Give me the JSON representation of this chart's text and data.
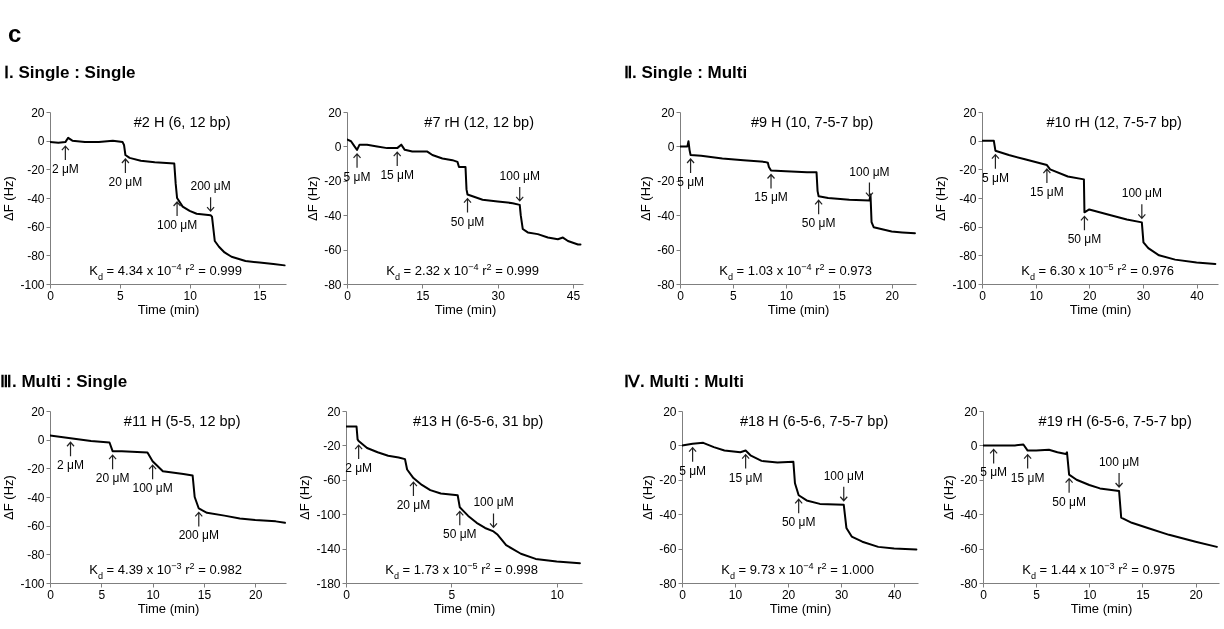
{
  "chart_data": [
    {
      "type": "line",
      "title": "#2  H (6, 12 bp)",
      "subtitle": "Ⅰ. Single : Single",
      "xlabel": "Time  (min)",
      "ylabel": "ΔF (Hz)",
      "xlim": [
        0,
        16.9
      ],
      "xticks": [
        0,
        5,
        10,
        15
      ],
      "ylim": [
        -100,
        20
      ],
      "yticks": [
        -100,
        -80,
        -60,
        -40,
        -20,
        0,
        20
      ],
      "series": [
        {
          "color": "#000000",
          "x": [
            0,
            0.6,
            1.1,
            1.3,
            1.6,
            2.5,
            3.5,
            4.5,
            5.2,
            5.3,
            5.4,
            5.7,
            6.5,
            7.5,
            8.9,
            9.0,
            9.1,
            9.5,
            10,
            10.5,
            11.5,
            11.6,
            11.8,
            12.1,
            12.5,
            13,
            14,
            15,
            16,
            16.8
          ],
          "values": [
            -1,
            -1.5,
            -1,
            2,
            0,
            -1,
            -1,
            0,
            -1,
            -3,
            -10,
            -12,
            -14,
            -15,
            -16,
            -30,
            -40,
            -46,
            -49,
            -51,
            -52,
            -53,
            -70,
            -74,
            -78,
            -81,
            -84,
            -85,
            -86,
            -87
          ]
        }
      ],
      "annotations": [
        "c",
        {
          "text": "2 μM",
          "x": 1.1,
          "y": -1
        },
        {
          "text": "20 μM",
          "x": 5.4,
          "y": -10
        },
        {
          "text": "100 μM",
          "x": 9.1,
          "y": -40
        },
        {
          "text": "200 μM",
          "x": 11.5,
          "y": -52
        },
        "K$_{d}$ = 4.34 x 10$^{−4}$   r$^{2}$ = 0.999"
      ]
    },
    {
      "type": "line",
      "title": "#7  rH (12, 12 bp)",
      "xlabel": "Time  (min)",
      "ylabel": "ΔF (Hz)",
      "xlim": [
        0,
        47
      ],
      "xticks": [
        0,
        15,
        30,
        45
      ],
      "ylim": [
        -80,
        20
      ],
      "yticks": [
        -80,
        -60,
        -40,
        -20,
        0,
        20
      ],
      "series": [
        {
          "color": "#000000",
          "x": [
            0,
            0.8,
            1.5,
            2,
            2.5,
            4,
            6,
            8,
            10,
            10.8,
            11.5,
            13,
            16,
            17,
            19,
            21,
            22,
            22.3,
            23.6,
            23.8,
            24,
            25,
            27,
            30,
            33,
            34.4,
            34.6,
            35,
            36,
            38,
            40,
            42,
            43,
            44,
            45,
            46,
            46.5
          ],
          "values": [
            4,
            3,
            0,
            -2,
            1,
            1,
            0,
            -1,
            -1,
            1,
            -2,
            -3,
            -3,
            -5,
            -7,
            -8,
            -9,
            -12,
            -12,
            -25,
            -28,
            -29,
            -31,
            -32,
            -33,
            -34,
            -40,
            -48,
            -50,
            -51,
            -53,
            -54,
            -53,
            -55,
            -56,
            -57,
            -57
          ]
        }
      ],
      "annotations": [
        {
          "text": "5 μM",
          "x": 2,
          "y": -2
        },
        {
          "text": "15 μM",
          "x": 10,
          "y": -1
        },
        {
          "text": "50 μM",
          "x": 24,
          "y": -28
        },
        {
          "text": "100 μM",
          "x": 34.4,
          "y": -34
        },
        "K$_{d}$ = 2.32 x 10$^{−4}$   r$^{2}$ = 0.999"
      ]
    },
    {
      "type": "line",
      "title": "#9  H (10, 7-5-7 bp)",
      "subtitle": "Ⅱ. Single : Multi",
      "xlabel": "Time  (min)",
      "ylabel": "ΔF (Hz)",
      "xlim": [
        0,
        22.3
      ],
      "xticks": [
        0,
        5,
        10,
        15,
        20
      ],
      "ylim": [
        -80,
        20
      ],
      "yticks": [
        -80,
        -60,
        -40,
        -20,
        0,
        20
      ],
      "series": [
        {
          "color": "#000000",
          "x": [
            0,
            0.7,
            0.8,
            0.9,
            1.0,
            2,
            4,
            6,
            8,
            8.3,
            8.4,
            8.6,
            10,
            12,
            12.9,
            13.0,
            13.1,
            14,
            16,
            17.9,
            18.0,
            18.1,
            18.3,
            19,
            20,
            21,
            22.2
          ],
          "values": [
            0,
            0,
            3,
            -2,
            -5,
            -5.5,
            -7,
            -8,
            -9,
            -9.5,
            -12,
            -14,
            -14.5,
            -15,
            -15,
            -26,
            -29,
            -30,
            -31,
            -31.5,
            -28,
            -44,
            -47,
            -48,
            -49.5,
            -50,
            -50.5
          ]
        }
      ],
      "annotations": [
        {
          "text": "5 μM",
          "x": 1.0,
          "y": -5
        },
        {
          "text": "15 μM",
          "x": 8.6,
          "y": -14
        },
        {
          "text": "50 μM",
          "x": 13.1,
          "y": -29
        },
        {
          "text": "100 μM",
          "x": 17.9,
          "y": -31.5
        },
        "K$_{d}$ = 1.03 x 10$^{−4}$   r$^{2}$ = 0.973"
      ]
    },
    {
      "type": "line",
      "title": "#10  rH (12, 7-5-7 bp)",
      "xlabel": "Time  (min)",
      "ylabel": "ΔF (Hz)",
      "xlim": [
        0,
        44
      ],
      "xticks": [
        0,
        10,
        20,
        30,
        40
      ],
      "ylim": [
        -100,
        20
      ],
      "yticks": [
        -100,
        -80,
        -60,
        -40,
        -20,
        0,
        20
      ],
      "series": [
        {
          "color": "#000000",
          "x": [
            0,
            2.2,
            2.5,
            5,
            8,
            12.1,
            12.7,
            16,
            19,
            19.1,
            20,
            24,
            27,
            29.8,
            30.1,
            31,
            33,
            36,
            40,
            43.5
          ],
          "values": [
            0,
            0,
            -7,
            -10,
            -13,
            -17,
            -20,
            -25,
            -27,
            -50,
            -48,
            -52,
            -55,
            -57,
            -71,
            -75,
            -80,
            -83,
            -85,
            -86
          ]
        }
      ],
      "annotations": [
        {
          "text": "5 μM",
          "x": 2.5,
          "y": -7
        },
        {
          "text": "15 μM",
          "x": 12.1,
          "y": -17
        },
        {
          "text": "50 μM",
          "x": 19.1,
          "y": -50
        },
        {
          "text": "100 μM",
          "x": 29.8,
          "y": -57
        },
        "K$_{d}$ = 6.30 x 10$^{−5}$   r$^{2}$ = 0.976"
      ]
    },
    {
      "type": "line",
      "title": "#11  H (5-5, 12 bp)",
      "subtitle": "Ⅲ. Multi : Single",
      "xlabel": "Time  (min)",
      "ylabel": "ΔF (Hz)",
      "xlim": [
        0,
        23
      ],
      "xticks": [
        0,
        5,
        10,
        15,
        20
      ],
      "ylim": [
        -100,
        20
      ],
      "yticks": [
        -100,
        -80,
        -60,
        -40,
        -20,
        0,
        20
      ],
      "series": [
        {
          "color": "#000000",
          "x": [
            0,
            2,
            4,
            5.8,
            6.1,
            7,
            9.5,
            10,
            11,
            13,
            13.9,
            14.1,
            14.5,
            15.3,
            17,
            18.5,
            20,
            22,
            22.9
          ],
          "values": [
            3,
            1,
            -1,
            -2,
            -8,
            -8,
            -9,
            -15,
            -22,
            -24,
            -25,
            -40,
            -48,
            -51,
            -53,
            -55,
            -56,
            -57,
            -58
          ]
        }
      ],
      "annotations": [
        {
          "text": "2 μM",
          "x": 2,
          "y": 1
        },
        {
          "text": "20 μM",
          "x": 6.1,
          "y": -8
        },
        {
          "text": "100 μM",
          "x": 10,
          "y": -15
        },
        {
          "text": "200 μM",
          "x": 14.5,
          "y": -48
        },
        "K$_{d}$ = 4.39 x 10$^{−3}$   r$^{2}$ = 0.982"
      ]
    },
    {
      "type": "line",
      "title": "#13  H (6-5-6, 31 bp)",
      "xlabel": "Time  (min)",
      "ylabel": "ΔF (Hz)",
      "xlim": [
        0,
        11.2
      ],
      "xticks": [
        0,
        5,
        10
      ],
      "ylim": [
        -180,
        20
      ],
      "yticks": [
        -180,
        -140,
        -100,
        -60,
        -20,
        20
      ],
      "series": [
        {
          "color": "#000000",
          "x": [
            0,
            0.5,
            0.55,
            0.6,
            1,
            1.5,
            2,
            2.5,
            2.8,
            2.9,
            3.2,
            3.6,
            4,
            4.5,
            5.3,
            5.4,
            5.8,
            6.2,
            6.6,
            7.0,
            7.2,
            7.6,
            8.3,
            9,
            10,
            11.1
          ],
          "values": [
            2,
            2,
            -13,
            -15,
            -23,
            -28,
            -32,
            -34,
            -36,
            -48,
            -58,
            -66,
            -72,
            -76,
            -78,
            -92,
            -102,
            -110,
            -116,
            -120,
            -124,
            -136,
            -146,
            -152,
            -155,
            -157
          ]
        }
      ],
      "annotations": [
        {
          "text": "2 μM",
          "x": 0.6,
          "y": -15
        },
        {
          "text": "20 μM",
          "x": 3.2,
          "y": -58
        },
        {
          "text": "50 μM",
          "x": 5.4,
          "y": -92
        },
        {
          "text": "100 μM",
          "x": 7.0,
          "y": -120
        },
        "K$_{d}$ = 1.73 x 10$^{−5}$   r$^{2}$ = 0.998"
      ]
    },
    {
      "type": "line",
      "title": "#18 H (6-5-6, 7-5-7 bp)",
      "subtitle": "Ⅳ. Multi : Multi",
      "xlabel": "Time  (min)",
      "ylabel": "ΔF (Hz)",
      "xlim": [
        0,
        44.5
      ],
      "xticks": [
        0,
        10,
        20,
        30,
        40
      ],
      "ylim": [
        -80,
        20
      ],
      "yticks": [
        -80,
        -60,
        -40,
        -20,
        0,
        20
      ],
      "series": [
        {
          "color": "#000000",
          "x": [
            0,
            2,
            4,
            6,
            8,
            11,
            12,
            13,
            15,
            18,
            21,
            21.3,
            22,
            23.5,
            26,
            30.5,
            31,
            32,
            34,
            37,
            40,
            44.2
          ],
          "values": [
            0,
            1,
            1.5,
            -1,
            -3,
            -4,
            -3,
            -6,
            -9,
            -10,
            -9.5,
            -22,
            -29,
            -32,
            -34,
            -34.5,
            -48,
            -53,
            -56,
            -59,
            -60,
            -60.5
          ]
        }
      ],
      "annotations": [
        {
          "text": "5 μM",
          "x": 2,
          "y": 1
        },
        {
          "text": "15 μM",
          "x": 12,
          "y": -3
        },
        {
          "text": "50 μM",
          "x": 22,
          "y": -29
        },
        {
          "text": "100 μM",
          "x": 30.5,
          "y": -34.5
        },
        "K$_{d}$ = 9.73 x 10$^{−4}$   r$^{2}$ = 1.000"
      ]
    },
    {
      "type": "line",
      "title": "#19  rH (6-5-6, 7-5-7 bp)",
      "xlabel": "Time  (min)",
      "ylabel": "ΔF (Hz)",
      "xlim": [
        0,
        22.2
      ],
      "xticks": [
        0,
        5,
        10,
        15,
        20
      ],
      "ylim": [
        -80,
        20
      ],
      "yticks": [
        -80,
        -60,
        -40,
        -20,
        0,
        20
      ],
      "series": [
        {
          "color": "#000000",
          "x": [
            0,
            3,
            3.8,
            4.2,
            5,
            6.2,
            7,
            7.8,
            7.9,
            8.1,
            8.8,
            10,
            11,
            12.8,
            13.0,
            14,
            15.5,
            17.5,
            20,
            22
          ],
          "values": [
            0,
            0,
            0.5,
            -3,
            -3,
            -2.5,
            -4,
            -5,
            -4,
            -17,
            -20,
            -23,
            -25,
            -26.5,
            -42,
            -45,
            -48,
            -52,
            -56,
            -59
          ]
        }
      ],
      "annotations": [
        {
          "text": "5 μM",
          "x": 1.0,
          "y": 0
        },
        {
          "text": "15 μM",
          "x": 4.2,
          "y": -3
        },
        {
          "text": "50 μM",
          "x": 8.1,
          "y": -17
        },
        {
          "text": "100 μM",
          "x": 12.8,
          "y": -26.5
        },
        "K$_{d}$ = 1.44 x 10$^{−3}$   r$^{2}$ = 0.975"
      ]
    }
  ]
}
